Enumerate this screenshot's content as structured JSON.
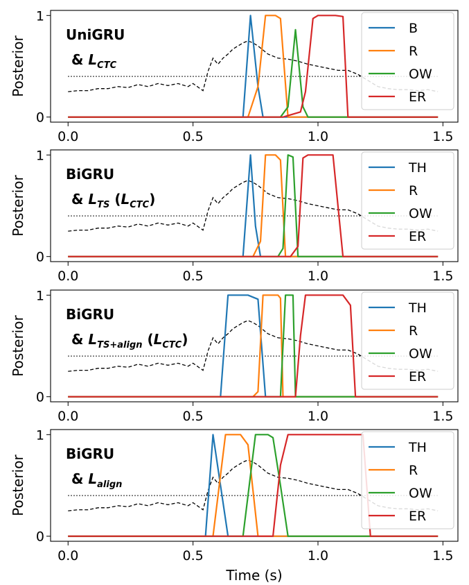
{
  "colors": {
    "blue": "#1f77b4",
    "orange": "#ff7f0e",
    "green": "#2ca02c",
    "red": "#d62728",
    "envelope": "#000000",
    "threshold": "#000000"
  },
  "chart_data": [
    {
      "type": "line",
      "ylabel": "Posterior",
      "xlabel": "",
      "xlim": [
        -0.07,
        1.56
      ],
      "ylim": [
        -0.05,
        1.05
      ],
      "xticks": [
        0.0,
        0.5,
        1.0,
        1.5
      ],
      "xtick_labels": [
        "0.0",
        "0.5",
        "1.0",
        "1.5"
      ],
      "yticks": [
        0,
        1
      ],
      "ytick_labels": [
        "0",
        "1"
      ],
      "legend_position": "top-right",
      "annotation": {
        "line1": "UniGRU",
        "line2_prefix": "& ",
        "math_symbol": "L",
        "math_subscript": "CTC",
        "paren_symbol": "",
        "paren_subscript": ""
      },
      "threshold": {
        "y": 0.4,
        "x": [
          0.0,
          1.48
        ]
      },
      "envelope": {
        "x": [
          0.0,
          0.04,
          0.08,
          0.12,
          0.16,
          0.2,
          0.24,
          0.28,
          0.32,
          0.36,
          0.4,
          0.44,
          0.48,
          0.5,
          0.54,
          0.56,
          0.58,
          0.6,
          0.62,
          0.64,
          0.66,
          0.68,
          0.7,
          0.72,
          0.74,
          0.76,
          0.8,
          0.84,
          0.88,
          0.92,
          0.96,
          1.0,
          1.04,
          1.08,
          1.12,
          1.16,
          1.2,
          1.24,
          1.28,
          1.32,
          1.36,
          1.4,
          1.44,
          1.48
        ],
        "y": [
          0.25,
          0.26,
          0.26,
          0.28,
          0.28,
          0.3,
          0.29,
          0.32,
          0.3,
          0.33,
          0.31,
          0.33,
          0.3,
          0.33,
          0.26,
          0.45,
          0.58,
          0.52,
          0.58,
          0.62,
          0.67,
          0.7,
          0.73,
          0.75,
          0.73,
          0.7,
          0.62,
          0.58,
          0.57,
          0.55,
          0.52,
          0.5,
          0.48,
          0.46,
          0.46,
          0.42,
          0.36,
          0.3,
          0.28,
          0.27,
          0.27,
          0.26,
          0.27,
          0.25
        ]
      },
      "series": [
        {
          "name": "B",
          "color_key": "blue",
          "x": [
            0.0,
            0.7,
            0.73,
            0.76,
            0.78,
            1.48
          ],
          "y": [
            0,
            0,
            1,
            0.3,
            0,
            0
          ]
        },
        {
          "name": "R",
          "color_key": "orange",
          "x": [
            0.0,
            0.72,
            0.76,
            0.79,
            0.8,
            0.83,
            0.85,
            0.88,
            1.48
          ],
          "y": [
            0,
            0,
            0.3,
            1,
            1,
            1,
            0.97,
            0,
            0
          ]
        },
        {
          "name": "OW",
          "color_key": "green",
          "x": [
            0.0,
            0.85,
            0.88,
            0.91,
            0.94,
            0.96,
            1.48
          ],
          "y": [
            0,
            0,
            0.1,
            0.86,
            0.1,
            0,
            0
          ]
        },
        {
          "name": "ER",
          "color_key": "red",
          "x": [
            0.0,
            0.86,
            0.93,
            0.95,
            0.98,
            1.0,
            1.02,
            1.04,
            1.07,
            1.1,
            1.12,
            1.48
          ],
          "y": [
            0,
            0,
            0.05,
            0.25,
            0.97,
            1,
            1,
            1,
            1,
            0.99,
            0,
            0
          ]
        }
      ]
    },
    {
      "type": "line",
      "ylabel": "Posterior",
      "xlabel": "",
      "xlim": [
        -0.07,
        1.56
      ],
      "ylim": [
        -0.05,
        1.05
      ],
      "xticks": [
        0.0,
        0.5,
        1.0,
        1.5
      ],
      "xtick_labels": [
        "0.0",
        "0.5",
        "1.0",
        "1.5"
      ],
      "yticks": [
        0,
        1
      ],
      "ytick_labels": [
        "0",
        "1"
      ],
      "legend_position": "top-right",
      "annotation": {
        "line1": "BiGRU",
        "line2_prefix": "& ",
        "math_symbol": "L",
        "math_subscript": "TS",
        "paren_symbol": "L",
        "paren_subscript": "CTC"
      },
      "threshold": {
        "y": 0.4,
        "x": [
          0.0,
          1.48
        ]
      },
      "envelope": {
        "x": [
          0.0,
          0.04,
          0.08,
          0.12,
          0.16,
          0.2,
          0.24,
          0.28,
          0.32,
          0.36,
          0.4,
          0.44,
          0.48,
          0.5,
          0.54,
          0.56,
          0.58,
          0.6,
          0.62,
          0.64,
          0.66,
          0.68,
          0.7,
          0.72,
          0.74,
          0.76,
          0.8,
          0.84,
          0.88,
          0.92,
          0.96,
          1.0,
          1.04,
          1.08,
          1.12,
          1.16,
          1.2,
          1.24,
          1.28,
          1.32,
          1.36,
          1.4,
          1.44,
          1.48
        ],
        "y": [
          0.25,
          0.26,
          0.26,
          0.28,
          0.28,
          0.3,
          0.29,
          0.32,
          0.3,
          0.33,
          0.31,
          0.33,
          0.3,
          0.33,
          0.26,
          0.45,
          0.58,
          0.52,
          0.58,
          0.62,
          0.67,
          0.7,
          0.73,
          0.75,
          0.73,
          0.7,
          0.62,
          0.58,
          0.57,
          0.55,
          0.52,
          0.5,
          0.48,
          0.46,
          0.46,
          0.42,
          0.36,
          0.3,
          0.28,
          0.27,
          0.27,
          0.26,
          0.27,
          0.25
        ]
      },
      "series": [
        {
          "name": "TH",
          "color_key": "blue",
          "x": [
            0.0,
            0.7,
            0.73,
            0.75,
            0.77,
            1.48
          ],
          "y": [
            0,
            0,
            1,
            0.3,
            0,
            0
          ]
        },
        {
          "name": "R",
          "color_key": "orange",
          "x": [
            0.0,
            0.74,
            0.77,
            0.79,
            0.8,
            0.83,
            0.85,
            0.87,
            1.48
          ],
          "y": [
            0,
            0,
            0.15,
            1,
            1,
            1,
            0.95,
            0,
            0
          ]
        },
        {
          "name": "OW",
          "color_key": "green",
          "x": [
            0.0,
            0.84,
            0.86,
            0.88,
            0.9,
            0.92,
            1.48
          ],
          "y": [
            0,
            0,
            0.08,
            1,
            0.98,
            0,
            0
          ]
        },
        {
          "name": "ER",
          "color_key": "red",
          "x": [
            0.0,
            0.89,
            0.92,
            0.94,
            0.96,
            1.0,
            1.02,
            1.04,
            1.06,
            1.1,
            1.48
          ],
          "y": [
            0,
            0,
            0.1,
            0.97,
            1,
            1,
            1,
            1,
            1,
            0,
            0
          ]
        }
      ]
    },
    {
      "type": "line",
      "ylabel": "Posterior",
      "xlabel": "",
      "xlim": [
        -0.07,
        1.56
      ],
      "ylim": [
        -0.05,
        1.05
      ],
      "xticks": [
        0.0,
        0.5,
        1.0,
        1.5
      ],
      "xtick_labels": [
        "0.0",
        "0.5",
        "1.0",
        "1.5"
      ],
      "yticks": [
        0,
        1
      ],
      "ytick_labels": [
        "0",
        "1"
      ],
      "legend_position": "top-right",
      "annotation": {
        "line1": "BiGRU",
        "line2_prefix": "& ",
        "math_symbol": "L",
        "math_subscript": "TS+align",
        "paren_symbol": "L",
        "paren_subscript": "CTC"
      },
      "threshold": {
        "y": 0.4,
        "x": [
          0.0,
          1.48
        ]
      },
      "envelope": {
        "x": [
          0.0,
          0.04,
          0.08,
          0.12,
          0.16,
          0.2,
          0.24,
          0.28,
          0.32,
          0.36,
          0.4,
          0.44,
          0.48,
          0.5,
          0.54,
          0.56,
          0.58,
          0.6,
          0.62,
          0.64,
          0.66,
          0.68,
          0.7,
          0.72,
          0.74,
          0.76,
          0.8,
          0.84,
          0.88,
          0.92,
          0.96,
          1.0,
          1.04,
          1.08,
          1.12,
          1.16,
          1.2,
          1.24,
          1.28,
          1.32,
          1.36,
          1.4,
          1.44,
          1.48
        ],
        "y": [
          0.25,
          0.26,
          0.26,
          0.28,
          0.28,
          0.3,
          0.29,
          0.32,
          0.3,
          0.33,
          0.31,
          0.33,
          0.3,
          0.33,
          0.26,
          0.45,
          0.58,
          0.52,
          0.58,
          0.62,
          0.67,
          0.7,
          0.73,
          0.75,
          0.73,
          0.7,
          0.62,
          0.58,
          0.57,
          0.55,
          0.52,
          0.5,
          0.48,
          0.46,
          0.46,
          0.42,
          0.36,
          0.3,
          0.28,
          0.27,
          0.27,
          0.26,
          0.27,
          0.25
        ]
      },
      "series": [
        {
          "name": "TH",
          "color_key": "blue",
          "x": [
            0.0,
            0.61,
            0.64,
            0.68,
            0.72,
            0.76,
            0.79,
            1.48
          ],
          "y": [
            0,
            0,
            1,
            1,
            1,
            0.96,
            0,
            0
          ]
        },
        {
          "name": "R",
          "color_key": "orange",
          "x": [
            0.0,
            0.74,
            0.76,
            0.78,
            0.81,
            0.84,
            0.85,
            0.86,
            1.48
          ],
          "y": [
            0,
            0,
            0.05,
            1,
            1,
            1,
            0.97,
            0,
            0
          ]
        },
        {
          "name": "OW",
          "color_key": "green",
          "x": [
            0.0,
            0.85,
            0.87,
            0.9,
            0.91,
            1.48
          ],
          "y": [
            0,
            0,
            1,
            1,
            0,
            0
          ]
        },
        {
          "name": "ER",
          "color_key": "red",
          "x": [
            0.0,
            0.91,
            0.93,
            0.95,
            1.0,
            1.04,
            1.08,
            1.1,
            1.13,
            1.15,
            1.48
          ],
          "y": [
            0,
            0,
            0.6,
            1,
            1,
            1,
            1,
            1,
            0.9,
            0,
            0
          ]
        }
      ]
    },
    {
      "type": "line",
      "ylabel": "Posterior",
      "xlabel": "Time (s)",
      "xlim": [
        -0.07,
        1.56
      ],
      "ylim": [
        -0.05,
        1.05
      ],
      "xticks": [
        0.0,
        0.5,
        1.0,
        1.5
      ],
      "xtick_labels": [
        "0.0",
        "0.5",
        "1.0",
        "1.5"
      ],
      "yticks": [
        0,
        1
      ],
      "ytick_labels": [
        "0",
        "1"
      ],
      "legend_position": "top-right",
      "annotation": {
        "line1": "BiGRU",
        "line2_prefix": "& ",
        "math_symbol": "L",
        "math_subscript": "align",
        "paren_symbol": "",
        "paren_subscript": ""
      },
      "threshold": {
        "y": 0.4,
        "x": [
          0.0,
          1.48
        ]
      },
      "envelope": {
        "x": [
          0.0,
          0.04,
          0.08,
          0.12,
          0.16,
          0.2,
          0.24,
          0.28,
          0.32,
          0.36,
          0.4,
          0.44,
          0.48,
          0.5,
          0.54,
          0.56,
          0.58,
          0.6,
          0.62,
          0.64,
          0.66,
          0.68,
          0.7,
          0.72,
          0.74,
          0.76,
          0.8,
          0.84,
          0.88,
          0.92,
          0.96,
          1.0,
          1.04,
          1.08,
          1.12,
          1.16,
          1.2,
          1.24,
          1.28,
          1.32,
          1.36,
          1.4,
          1.44,
          1.48
        ],
        "y": [
          0.25,
          0.26,
          0.26,
          0.28,
          0.28,
          0.3,
          0.29,
          0.32,
          0.3,
          0.33,
          0.31,
          0.33,
          0.3,
          0.33,
          0.26,
          0.45,
          0.58,
          0.52,
          0.58,
          0.62,
          0.67,
          0.7,
          0.73,
          0.75,
          0.73,
          0.7,
          0.62,
          0.58,
          0.57,
          0.55,
          0.52,
          0.5,
          0.48,
          0.46,
          0.46,
          0.42,
          0.36,
          0.3,
          0.28,
          0.27,
          0.27,
          0.26,
          0.27,
          0.25
        ]
      },
      "series": [
        {
          "name": "TH",
          "color_key": "blue",
          "x": [
            0.0,
            0.55,
            0.58,
            0.61,
            0.64,
            1.48
          ],
          "y": [
            0,
            0,
            1,
            0.5,
            0,
            0
          ]
        },
        {
          "name": "R",
          "color_key": "orange",
          "x": [
            0.0,
            0.58,
            0.61,
            0.63,
            0.65,
            0.69,
            0.72,
            0.76,
            1.48
          ],
          "y": [
            0,
            0,
            0.6,
            1,
            1,
            1,
            0.9,
            0,
            0
          ]
        },
        {
          "name": "OW",
          "color_key": "green",
          "x": [
            0.0,
            0.7,
            0.73,
            0.75,
            0.8,
            0.82,
            0.85,
            0.88,
            1.48
          ],
          "y": [
            0,
            0,
            0.6,
            1,
            1,
            0.97,
            0.5,
            0,
            0
          ]
        },
        {
          "name": "ER",
          "color_key": "red",
          "x": [
            0.0,
            0.82,
            0.85,
            0.88,
            0.9,
            0.95,
            1.0,
            1.05,
            1.1,
            1.15,
            1.18,
            1.21,
            1.48
          ],
          "y": [
            0,
            0,
            0.7,
            1,
            1,
            1,
            1,
            1,
            1,
            1,
            1,
            0,
            0
          ]
        }
      ]
    }
  ]
}
